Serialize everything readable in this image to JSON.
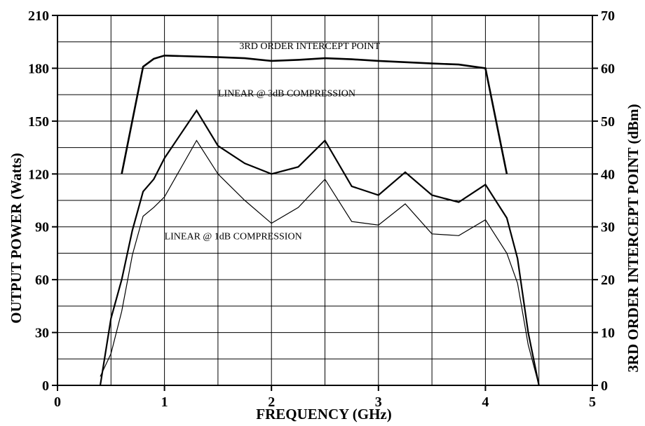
{
  "chart_data": {
    "type": "line",
    "title": "",
    "xlabel": "FREQUENCY (GHz)",
    "ylabel": "OUTPUT POWER (Watts)",
    "y2label": "3RD ORDER INTERCEPT POINT (dBm)",
    "xlim": [
      0,
      5
    ],
    "ylim": [
      0,
      210
    ],
    "y2lim": [
      0,
      70
    ],
    "x_ticks": [
      "0",
      "1",
      "2",
      "3",
      "4",
      "5"
    ],
    "y_ticks": [
      "0",
      "30",
      "60",
      "90",
      "120",
      "150",
      "180",
      "210"
    ],
    "y2_ticks": [
      "0",
      "10",
      "20",
      "30",
      "40",
      "50",
      "60",
      "70"
    ],
    "grid": true,
    "annotations": [
      {
        "text": "3RD ORDER INTERCEPT POINT",
        "x": 1.7,
        "y": 191
      },
      {
        "text": "LINEAR @ 3dB COMPRESSION",
        "x": 1.5,
        "y": 164
      },
      {
        "text": "LINEAR @ 1dB COMPRESSION",
        "x": 1.0,
        "y": 83
      }
    ],
    "series": [
      {
        "name": "3RD ORDER INTERCEPT POINT",
        "axis": "right",
        "stroke": "#000000",
        "weight": "heavy",
        "x": [
          0.6,
          0.8,
          0.9,
          1.0,
          1.5,
          1.75,
          2.0,
          2.25,
          2.5,
          2.75,
          3.0,
          3.5,
          3.75,
          4.0,
          4.2
        ],
        "y": [
          40,
          60.3,
          61.8,
          62.4,
          62.1,
          61.9,
          61.4,
          61.6,
          61.9,
          61.7,
          61.4,
          60.9,
          60.7,
          60.0,
          40
        ]
      },
      {
        "name": "LINEAR @ 3dB COMPRESSION",
        "axis": "left",
        "stroke": "#000000",
        "weight": "medium",
        "x": [
          0.4,
          0.5,
          0.6,
          0.7,
          0.8,
          0.9,
          1.0,
          1.3,
          1.5,
          1.75,
          2.0,
          2.25,
          2.5,
          2.75,
          3.0,
          3.25,
          3.5,
          3.75,
          4.0,
          4.2,
          4.3,
          4.4,
          4.5
        ],
        "y": [
          0,
          38,
          60,
          88,
          110,
          117,
          129,
          156,
          136,
          126,
          120,
          124,
          139,
          113,
          108,
          121,
          108,
          104,
          114,
          95,
          72,
          30,
          0
        ]
      },
      {
        "name": "LINEAR @ 1dB COMPRESSION",
        "axis": "left",
        "stroke": "#000000",
        "weight": "light",
        "x": [
          0.4,
          0.5,
          0.6,
          0.7,
          0.8,
          0.9,
          1.0,
          1.3,
          1.5,
          1.75,
          2.0,
          2.25,
          2.5,
          2.75,
          3.0,
          3.25,
          3.5,
          3.75,
          4.0,
          4.2,
          4.3,
          4.4,
          4.5
        ],
        "y": [
          5,
          18,
          42,
          74,
          96,
          101,
          107,
          139,
          120,
          105,
          92,
          101,
          117,
          93,
          91,
          103,
          86,
          85,
          94,
          75,
          58,
          23,
          0
        ]
      }
    ]
  }
}
